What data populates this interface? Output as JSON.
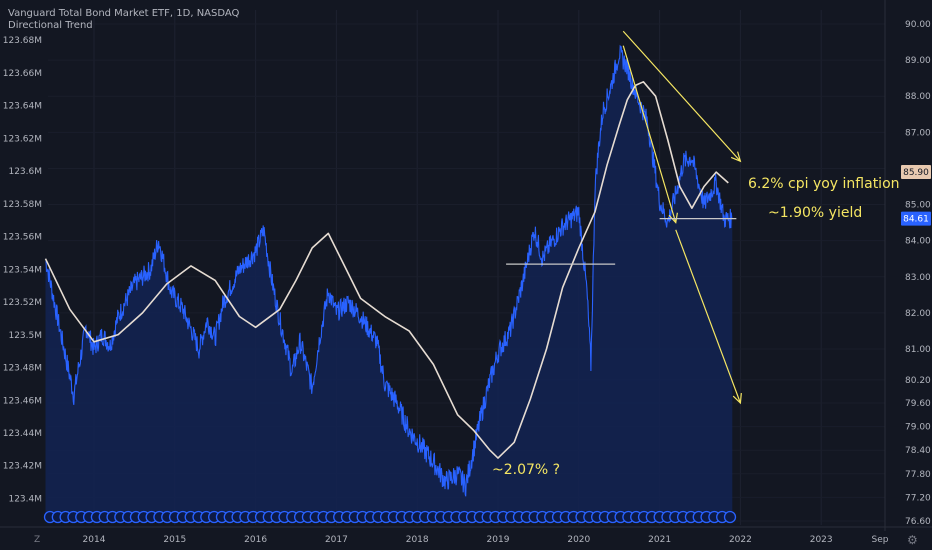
{
  "header": {
    "title": "Vanguard Total Bond Market ETF, 1D, NASDAQ",
    "indicator": "Directional Trend"
  },
  "annotations": {
    "inflation": "6.2% cpi yoy inflation",
    "yield_now": "~1.90% yield",
    "yield_low": "~2.07%  ?"
  },
  "bottom_left_label": "Z",
  "corner_icon": "settings-gear-icon",
  "colors": {
    "background": "#131722",
    "price_line": "#2962ff",
    "area_fill": "#132250",
    "trend_line": "#e6dcd2",
    "annotation": "#f5e663",
    "axis_text": "#b2b5be",
    "last_price_badge": "#2962ff",
    "ma_badge": "#e8c9b0",
    "event_markers": "#2962ff"
  },
  "chart_data": {
    "type": "line",
    "title": "Vanguard Total Bond Market ETF, 1D, NASDAQ",
    "x_ticks": [
      "2014",
      "2015",
      "2016",
      "2017",
      "2018",
      "2019",
      "2020",
      "2021",
      "2022",
      "2023",
      "Sep"
    ],
    "x_range": [
      2013.4,
      2024.7
    ],
    "right_axis": {
      "ticks": [
        "90.00",
        "89.00",
        "88.00",
        "87.00",
        "86.00",
        "85.00",
        "84.00",
        "83.00",
        "82.00",
        "81.00",
        "80.20",
        "79.60",
        "79.00",
        "78.40",
        "77.80",
        "77.20",
        "76.60"
      ],
      "badges": [
        {
          "label": "85.90",
          "value": 85.9
        },
        {
          "label": "84.61",
          "value": 84.61
        }
      ]
    },
    "left_axis": {
      "ticks": [
        "123.68M",
        "123.66M",
        "123.64M",
        "123.62M",
        "123.6M",
        "123.58M",
        "123.56M",
        "123.54M",
        "123.52M",
        "123.5M",
        "123.48M",
        "123.46M",
        "123.44M",
        "123.42M",
        "123.4M"
      ],
      "range": [
        123.396,
        123.685
      ]
    },
    "scale_segments": [
      {
        "price": 90.0,
        "label_value": 90.0
      },
      {
        "price": 81.0,
        "label_value": 81.0
      },
      {
        "price": 76.6,
        "label_value": 76.6
      }
    ],
    "series": [
      {
        "role": "price",
        "x": [
          2013.4,
          2013.6,
          2013.75,
          2013.9,
          2014.0,
          2014.1,
          2014.2,
          2014.3,
          2014.5,
          2014.7,
          2014.8,
          2014.95,
          2015.1,
          2015.3,
          2015.4,
          2015.5,
          2015.6,
          2015.8,
          2016.0,
          2016.1,
          2016.2,
          2016.3,
          2016.45,
          2016.55,
          2016.7,
          2016.8,
          2016.9,
          2017.0,
          2017.15,
          2017.3,
          2017.5,
          2017.6,
          2017.75,
          2017.9,
          2018.05,
          2018.2,
          2018.35,
          2018.5,
          2018.6,
          2018.75,
          2018.85,
          2019.0,
          2019.15,
          2019.3,
          2019.45,
          2019.55,
          2019.65,
          2019.8,
          2019.9,
          2020.0,
          2020.1,
          2020.15,
          2020.18,
          2020.2,
          2020.25,
          2020.3,
          2020.4,
          2020.5,
          2020.6,
          2020.7,
          2020.85,
          2021.0,
          2021.1,
          2021.2,
          2021.3,
          2021.4,
          2021.55,
          2021.7,
          2021.8,
          2021.9
        ],
        "y": [
          83.5,
          81.3,
          79.8,
          81.6,
          81.0,
          81.4,
          81.1,
          81.9,
          82.8,
          83.2,
          84.0,
          82.6,
          82.1,
          81.0,
          81.8,
          81.3,
          82.3,
          83.2,
          83.7,
          84.3,
          82.9,
          81.8,
          80.4,
          81.2,
          80.0,
          81.4,
          82.6,
          82.0,
          82.3,
          81.9,
          81.2,
          80.1,
          79.6,
          78.9,
          78.5,
          78.1,
          77.6,
          77.8,
          77.5,
          78.9,
          79.8,
          80.9,
          81.5,
          82.8,
          84.3,
          83.5,
          83.9,
          84.4,
          84.6,
          84.8,
          82.6,
          80.6,
          83.4,
          85.5,
          86.7,
          87.6,
          88.3,
          89.2,
          88.8,
          88.1,
          87.3,
          85.1,
          84.5,
          85.3,
          86.2,
          86.3,
          85.0,
          85.6,
          84.6,
          84.61
        ]
      },
      {
        "role": "trend",
        "x": [
          2013.4,
          2013.7,
          2014.0,
          2014.3,
          2014.6,
          2014.9,
          2015.2,
          2015.5,
          2015.8,
          2016.0,
          2016.3,
          2016.5,
          2016.7,
          2016.9,
          2017.1,
          2017.3,
          2017.6,
          2017.9,
          2018.2,
          2018.5,
          2018.7,
          2018.9,
          2019.0,
          2019.2,
          2019.4,
          2019.6,
          2019.8,
          2020.0,
          2020.2,
          2020.35,
          2020.5,
          2020.6,
          2020.7,
          2020.8,
          2020.95,
          2021.1,
          2021.25,
          2021.4,
          2021.55,
          2021.7,
          2021.85
        ],
        "y": [
          83.5,
          82.1,
          81.2,
          81.4,
          82.0,
          82.8,
          83.3,
          82.9,
          81.9,
          81.6,
          82.1,
          82.9,
          83.8,
          84.2,
          83.3,
          82.4,
          81.9,
          81.5,
          80.6,
          79.3,
          78.9,
          78.4,
          78.2,
          78.6,
          79.7,
          81.0,
          82.7,
          83.8,
          84.8,
          86.1,
          87.2,
          87.9,
          88.3,
          88.4,
          88.0,
          86.8,
          85.5,
          84.9,
          85.5,
          85.9,
          85.6
        ]
      }
    ],
    "trendlines": [
      {
        "from": [
          2020.55,
          89.8
        ],
        "to": [
          2022.0,
          86.2
        ],
        "arrow": true
      },
      {
        "from": [
          2020.55,
          89.4
        ],
        "to": [
          2021.2,
          84.5
        ],
        "arrow": true
      },
      {
        "from": [
          2021.2,
          84.3
        ],
        "to": [
          2022.0,
          79.6
        ],
        "arrow": true
      },
      {
        "from": [
          2019.1,
          83.35
        ],
        "to": [
          2020.45,
          83.35
        ],
        "arrow": false
      },
      {
        "from": [
          2021.0,
          84.61
        ],
        "to": [
          2021.95,
          84.61
        ],
        "arrow": false
      }
    ],
    "event_markers_count": 88
  }
}
